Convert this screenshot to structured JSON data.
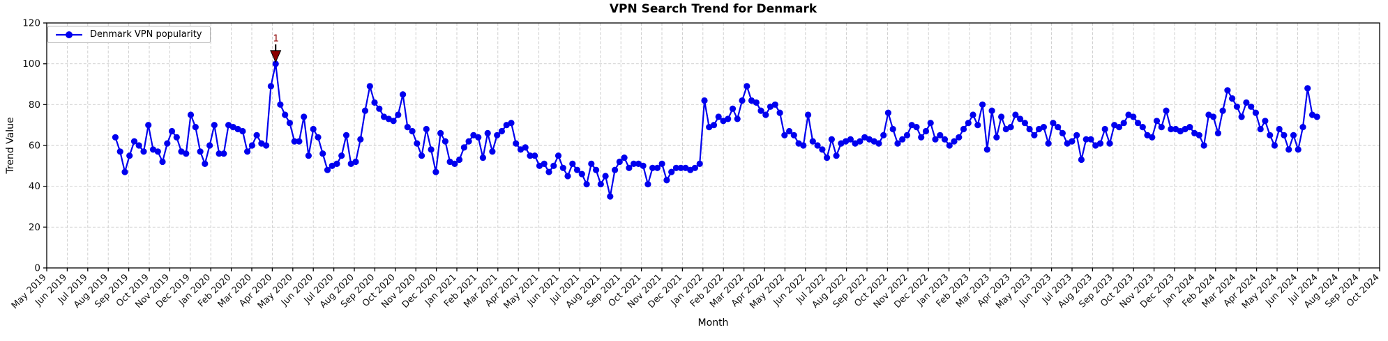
{
  "chart_data": {
    "type": "line",
    "title": "VPN Search Trend for Denmark",
    "xlabel": "Month",
    "ylabel": "Trend Value",
    "ylim": [
      0,
      120
    ],
    "yticks": [
      0,
      20,
      40,
      60,
      80,
      100,
      120
    ],
    "x_domain": [
      "2019-05-01",
      "2024-10-01"
    ],
    "x_tick_labels": [
      "May 2019",
      "Jun 2019",
      "Jul 2019",
      "Aug 2019",
      "Sep 2019",
      "Oct 2019",
      "Nov 2019",
      "Dec 2019",
      "Jan 2020",
      "Feb 2020",
      "Mar 2020",
      "Apr 2020",
      "May 2020",
      "Jun 2020",
      "Jul 2020",
      "Aug 2020",
      "Sep 2020",
      "Oct 2020",
      "Nov 2020",
      "Dec 2020",
      "Jan 2021",
      "Feb 2021",
      "Mar 2021",
      "Apr 2021",
      "May 2021",
      "Jun 2021",
      "Jul 2021",
      "Aug 2021",
      "Sep 2021",
      "Oct 2021",
      "Nov 2021",
      "Dec 2021",
      "Jan 2022",
      "Feb 2022",
      "Mar 2022",
      "Apr 2022",
      "May 2022",
      "Jun 2022",
      "Jul 2022",
      "Aug 2022",
      "Sep 2022",
      "Oct 2022",
      "Nov 2022",
      "Dec 2022",
      "Jan 2023",
      "Feb 2023",
      "Mar 2023",
      "Apr 2023",
      "May 2023",
      "Jun 2023",
      "Jul 2023",
      "Aug 2023",
      "Sep 2023",
      "Oct 2023",
      "Nov 2023",
      "Dec 2023",
      "Jan 2024",
      "Feb 2024",
      "Mar 2024",
      "Apr 2024",
      "May 2024",
      "Jun 2024",
      "Jul 2024",
      "Aug 2024",
      "Sep 2024",
      "Oct 2024"
    ],
    "grid": {
      "visible": true,
      "style": "dashed",
      "color": "#c9c9c9"
    },
    "legend": {
      "position": "upper left",
      "entries": [
        {
          "label": "Denmark VPN popularity",
          "color": "#0000EE",
          "marker": "circle"
        }
      ]
    },
    "series": [
      {
        "name": "Denmark VPN popularity",
        "color": "#0000EE",
        "marker": "circle",
        "start_date": "2019-08-11",
        "interval_days": 7,
        "values": [
          64,
          57,
          47,
          55,
          62,
          60,
          57,
          70,
          58,
          57,
          52,
          61,
          67,
          64,
          57,
          56,
          75,
          69,
          57,
          51,
          60,
          70,
          56,
          56,
          70,
          69,
          68,
          67,
          57,
          60,
          65,
          61,
          60,
          89,
          100,
          80,
          75,
          71,
          62,
          62,
          74,
          55,
          68,
          64,
          56,
          48,
          50,
          51,
          55,
          65,
          51,
          52,
          63,
          77,
          89,
          81,
          78,
          74,
          73,
          72,
          75,
          85,
          69,
          67,
          61,
          55,
          68,
          58,
          47,
          66,
          62,
          52,
          51,
          53,
          59,
          62,
          65,
          64,
          54,
          66,
          57,
          65,
          67,
          70,
          71,
          61,
          58,
          59,
          55,
          55,
          50,
          51,
          47,
          50,
          55,
          49,
          45,
          51,
          48,
          46,
          41,
          51,
          48,
          41,
          45,
          35,
          48,
          52,
          54,
          49,
          51,
          51,
          50,
          41,
          49,
          49,
          51,
          43,
          47,
          49,
          49,
          49,
          48,
          49,
          51,
          82,
          69,
          70,
          74,
          72,
          73,
          78,
          73,
          82,
          89,
          82,
          81,
          77,
          75,
          79,
          80,
          76,
          65,
          67,
          65,
          61,
          60,
          75,
          62,
          60,
          58,
          54,
          63,
          55,
          61,
          62,
          63,
          61,
          62,
          64,
          63,
          62,
          61,
          65,
          76,
          68,
          61,
          63,
          65,
          70,
          69,
          64,
          67,
          71,
          63,
          65,
          63,
          60,
          62,
          64,
          68,
          71,
          75,
          70,
          80,
          58,
          77,
          64,
          74,
          68,
          69,
          75,
          73,
          71,
          68,
          65,
          68,
          69,
          61,
          71,
          69,
          66,
          61,
          62,
          65,
          53,
          63,
          63,
          60,
          61,
          68,
          61,
          70,
          69,
          71,
          75,
          74,
          71,
          69,
          65,
          64,
          72,
          69,
          77,
          68,
          68,
          67,
          68,
          69,
          66,
          65,
          60,
          75,
          74,
          66,
          77,
          87,
          83,
          79,
          74,
          81,
          79,
          76,
          68,
          72,
          65,
          60,
          68,
          65,
          58,
          65,
          58,
          69,
          88,
          75,
          74
        ]
      }
    ],
    "annotation": {
      "label": "1",
      "color": "#8B0000",
      "point_index": 34,
      "value": 100
    }
  }
}
